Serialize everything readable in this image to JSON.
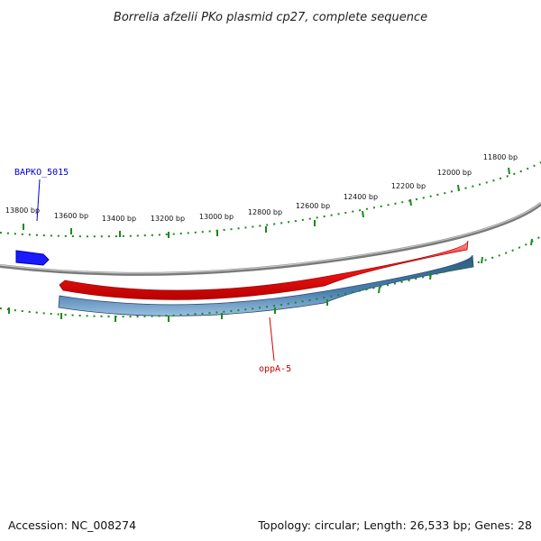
{
  "title": "Borrelia afzelii PKo plasmid cp27, complete sequence",
  "footer": {
    "accession": "Accession: NC_008274",
    "summary": "Topology: circular; Length: 26,533 bp; Genes: 28"
  },
  "ruler": {
    "labels": [
      "11800 bp",
      "12000 bp",
      "12200 bp",
      "12400 bp",
      "12600 bp",
      "12800 bp",
      "13000 bp",
      "13200 bp",
      "13400 bp",
      "13600 bp",
      "13800 bp"
    ]
  },
  "genes": [
    {
      "name": "BAPKO_5015",
      "color": "#0000cc",
      "fill": "#1a1aff"
    },
    {
      "name": "oppA-5",
      "color": "#cc0000",
      "fill": "#ee1111"
    }
  ],
  "colors": {
    "backbone": "#8a8a8a",
    "tick": "#1a8a1a",
    "forward_feature": "#ee1111",
    "reverse_feature": "#4a7fb0"
  }
}
